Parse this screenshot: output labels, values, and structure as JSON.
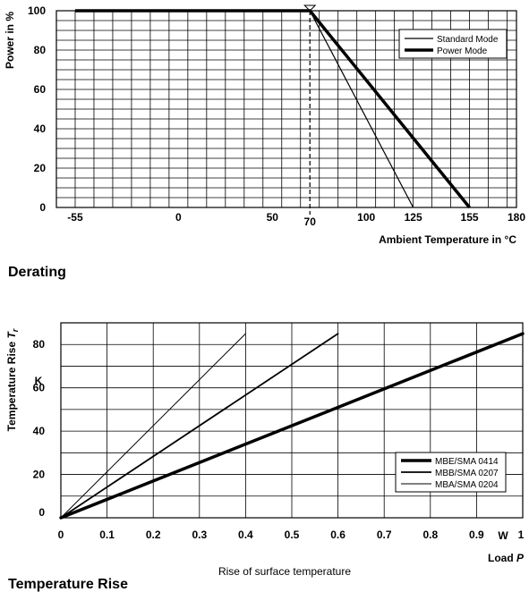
{
  "chart_data": [
    {
      "type": "line",
      "title": "Derating",
      "xlabel": "Ambient Temperature in °C",
      "ylabel": "Power in %",
      "xlim": [
        -65,
        180
      ],
      "ylim": [
        0,
        100
      ],
      "x_ticks": [
        -55,
        0,
        50,
        70,
        100,
        125,
        155,
        180
      ],
      "y_ticks": [
        0,
        20,
        40,
        60,
        80,
        100
      ],
      "grid": true,
      "legend_position": "top-right",
      "marker_line_x": 70,
      "series": [
        {
          "name": "Standard Mode",
          "style": "thin",
          "points": [
            [
              -55,
              100
            ],
            [
              70,
              100
            ],
            [
              125,
              0
            ]
          ]
        },
        {
          "name": "Power Mode",
          "style": "thick",
          "points": [
            [
              -55,
              100
            ],
            [
              70,
              100
            ],
            [
              155,
              0
            ]
          ]
        }
      ]
    },
    {
      "type": "line",
      "title": "Temperature Rise",
      "subtitle": "Rise of surface temperature",
      "xlabel": "Load P",
      "x_unit": "W",
      "ylabel": "Temperature Rise Tr",
      "y_unit": "K",
      "xlim": [
        0,
        1
      ],
      "ylim": [
        0,
        90
      ],
      "x_ticks": [
        0,
        0.1,
        0.2,
        0.3,
        0.4,
        0.5,
        0.6,
        0.7,
        0.8,
        0.9,
        1
      ],
      "y_ticks": [
        0,
        20,
        40,
        60,
        80
      ],
      "grid": true,
      "legend_position": "bottom-right",
      "series": [
        {
          "name": "MBE/SMA 0414",
          "style": "thick",
          "points": [
            [
              0,
              0
            ],
            [
              1,
              85
            ]
          ]
        },
        {
          "name": "MBB/SMA 0207",
          "style": "medium",
          "points": [
            [
              0,
              0
            ],
            [
              0.6,
              85
            ]
          ]
        },
        {
          "name": "MBA/SMA 0204",
          "style": "thin",
          "points": [
            [
              0,
              0
            ],
            [
              0.4,
              85
            ]
          ]
        }
      ]
    }
  ]
}
